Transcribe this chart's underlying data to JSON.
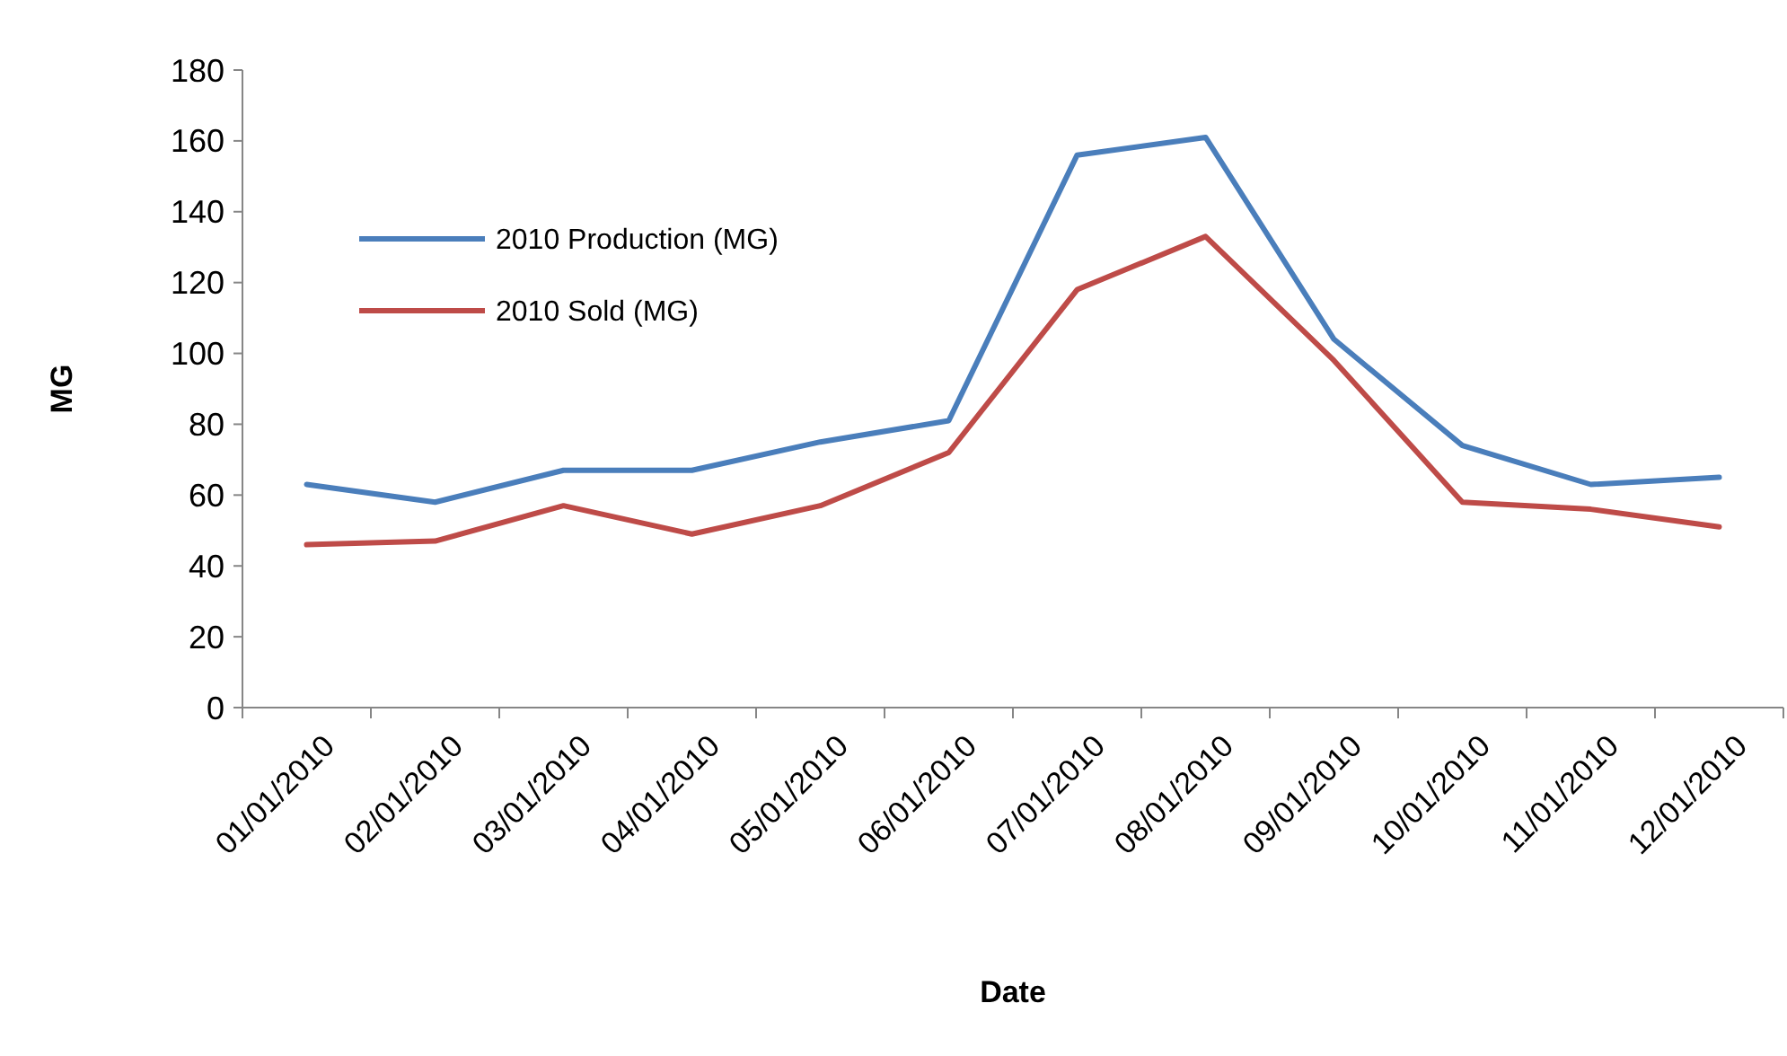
{
  "chart_data": {
    "type": "line",
    "xlabel": "Date",
    "ylabel": "MG",
    "categories": [
      "01/01/2010",
      "02/01/2010",
      "03/01/2010",
      "04/01/2010",
      "05/01/2010",
      "06/01/2010",
      "07/01/2010",
      "08/01/2010",
      "09/01/2010",
      "10/01/2010",
      "11/01/2010",
      "12/01/2010"
    ],
    "series": [
      {
        "name": "2010 Production (MG)",
        "color": "#4a7ebb",
        "values": [
          63,
          58,
          67,
          67,
          75,
          81,
          156,
          161,
          104,
          74,
          63,
          65
        ]
      },
      {
        "name": "2010 Sold (MG)",
        "color": "#be4b48",
        "values": [
          46,
          47,
          57,
          49,
          57,
          72,
          118,
          133,
          98,
          58,
          56,
          51
        ]
      }
    ],
    "ylim": [
      0,
      180
    ],
    "yticks": [
      0,
      20,
      40,
      60,
      80,
      100,
      120,
      140,
      160,
      180
    ],
    "grid": false,
    "legend": "top left",
    "marker": "none",
    "line_style": "solid"
  }
}
